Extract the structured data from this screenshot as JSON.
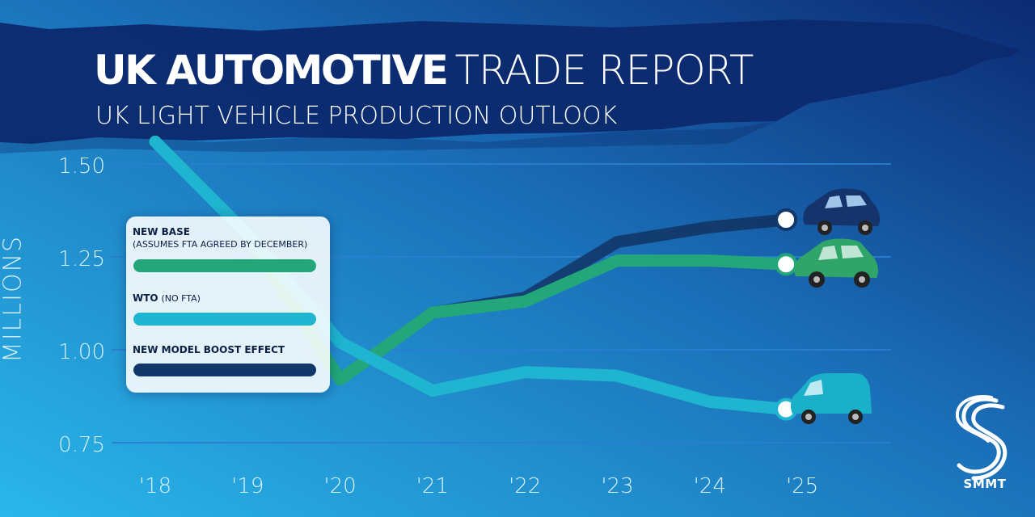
{
  "header": {
    "title_bold": "UK AUTOMOTIVE",
    "title_light": "TRADE REPORT",
    "subtitle": "UK LIGHT VEHICLE PRODUCTION OUTLOOK"
  },
  "legend": {
    "items": [
      {
        "label": "NEW BASE",
        "note": "(ASSUMES FTA AGREED BY DECEMBER)"
      },
      {
        "label": "WTO",
        "note": "(NO FTA)"
      },
      {
        "label": "NEW MODEL BOOST EFFECT",
        "note": ""
      }
    ]
  },
  "brand": {
    "name": "SMMT"
  },
  "colors": {
    "new_base": "#23a77a",
    "wto": "#1fb4cf",
    "new_model_boost": "#12386a",
    "background_left": "#2ab7ea",
    "background_right": "#0c2a73"
  },
  "chart_data": {
    "type": "line",
    "title": "UK LIGHT VEHICLE PRODUCTION OUTLOOK",
    "ylabel": "MILLIONS",
    "xlabel": "",
    "categories": [
      "'18",
      "'19",
      "'20",
      "'21",
      "'22",
      "'23",
      "'24",
      "'25"
    ],
    "y_ticks": [
      "1.50",
      "1.25",
      "1.00",
      "0.75"
    ],
    "ylim": [
      0.75,
      1.5
    ],
    "grid": true,
    "legend_position": "left",
    "series": [
      {
        "name": "NEW BASE",
        "x": [
          2018,
          2019,
          2020,
          2021,
          2022,
          2023,
          2024,
          2025
        ],
        "values": [
          1.56,
          1.31,
          0.92,
          1.1,
          1.13,
          1.24,
          1.24,
          1.23
        ]
      },
      {
        "name": "WTO",
        "x": [
          2018,
          2019,
          2020,
          2021,
          2022,
          2023,
          2024,
          2025
        ],
        "values": [
          1.56,
          1.31,
          1.02,
          0.89,
          0.94,
          0.93,
          0.86,
          0.84
        ]
      },
      {
        "name": "NEW MODEL BOOST EFFECT",
        "x": [
          2020,
          2021,
          2022,
          2023,
          2024,
          2025
        ],
        "values": [
          0.92,
          1.1,
          1.14,
          1.29,
          1.33,
          1.35
        ]
      }
    ]
  }
}
